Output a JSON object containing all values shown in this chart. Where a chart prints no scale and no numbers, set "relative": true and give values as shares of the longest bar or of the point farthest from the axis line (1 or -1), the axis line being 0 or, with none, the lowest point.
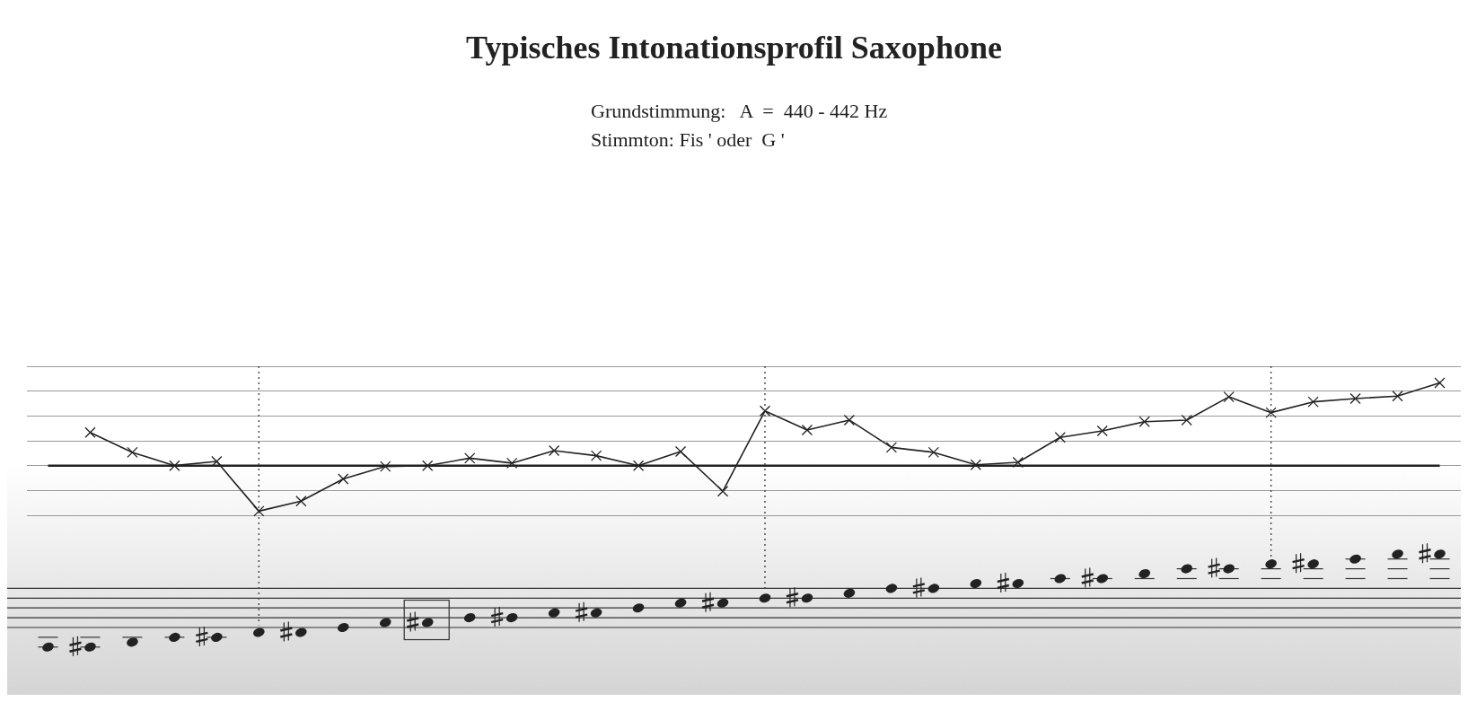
{
  "chart_data": {
    "type": "line",
    "title": "Typisches Intonationsprofil Saxophone",
    "annotations": [
      "Grundstimmung:   A  =  440 - 442 Hz",
      "Stimmton: Fis ' oder  G '"
    ],
    "categories": [
      null,
      null,
      null,
      null,
      null,
      null,
      null,
      null,
      null,
      null,
      null,
      null,
      null,
      null,
      null,
      null,
      null,
      null,
      null,
      null,
      null,
      null,
      null,
      null,
      null,
      null,
      null,
      null,
      null,
      null,
      null,
      null,
      null,
      null
    ],
    "series": [
      {
        "color": "#222222",
        "values": [
          null,
          0.4,
          0.16,
          0,
          0.05,
          -0.55,
          -0.43,
          -0.16,
          -0.01,
          0,
          0.09,
          0.03,
          0.18,
          0.12,
          0,
          0.17,
          -0.31,
          0.66,
          0.43,
          0.55,
          0.22,
          0.16,
          0.01,
          0.04,
          0.34,
          0.42,
          0.53,
          0.55,
          0.83,
          0.64,
          0.77,
          0.81,
          0.84,
          1
        ]
      }
    ],
    "relative": true,
    "marker": "cross",
    "line_style": "solid",
    "grid": true
  }
}
